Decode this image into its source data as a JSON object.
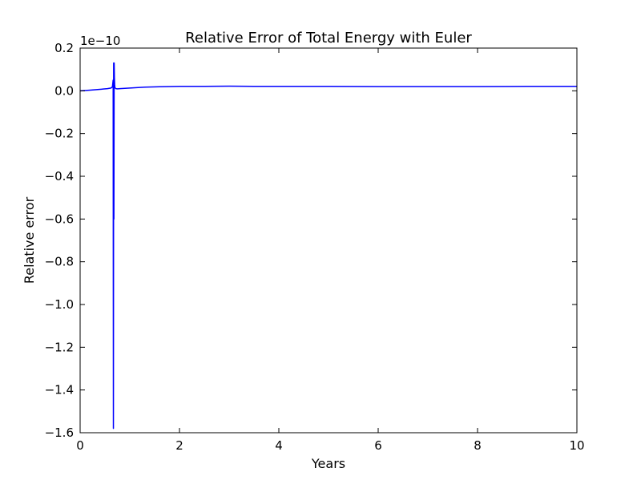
{
  "chart_data": {
    "type": "line",
    "title": "Relative Error of Total Energy with Euler",
    "xlabel": "Years",
    "ylabel": "Relative error",
    "y_offset_label": "1e−10",
    "xlim": [
      0,
      10
    ],
    "ylim": [
      -1.6,
      0.2
    ],
    "x_ticks": [
      0,
      2,
      4,
      6,
      8,
      10
    ],
    "x_tick_labels": [
      "0",
      "2",
      "4",
      "6",
      "8",
      "10"
    ],
    "y_ticks": [
      0.2,
      0.0,
      -0.2,
      -0.4,
      -0.6,
      -0.8,
      -1.0,
      -1.2,
      -1.4,
      -1.6
    ],
    "y_tick_labels": [
      "0.2",
      "0.0",
      "−0.2",
      "−0.4",
      "−0.6",
      "−0.8",
      "−1.0",
      "−1.2",
      "−1.4",
      "−1.6"
    ],
    "grid": false,
    "series": [
      {
        "color": "#0000ff",
        "x": [
          0,
          0.2,
          0.4,
          0.55,
          0.62,
          0.65,
          0.665,
          0.67,
          0.675,
          0.68,
          0.685,
          0.69,
          0.695,
          0.7,
          0.72,
          0.75,
          0.8,
          1.0,
          1.3,
          1.6,
          2.0,
          2.5,
          3.0,
          3.5,
          4.0,
          5.0,
          6.0,
          7.0,
          8.0,
          9.0,
          10.0
        ],
        "y": [
          0.0,
          0.003,
          0.007,
          0.01,
          0.013,
          0.018,
          0.05,
          -1.58,
          0.13,
          -0.6,
          0.13,
          0.06,
          0.03,
          0.015,
          0.01,
          0.009,
          0.01,
          0.013,
          0.017,
          0.019,
          0.021,
          0.021,
          0.022,
          0.021,
          0.021,
          0.021,
          0.02,
          0.02,
          0.02,
          0.021,
          0.021
        ]
      }
    ]
  }
}
